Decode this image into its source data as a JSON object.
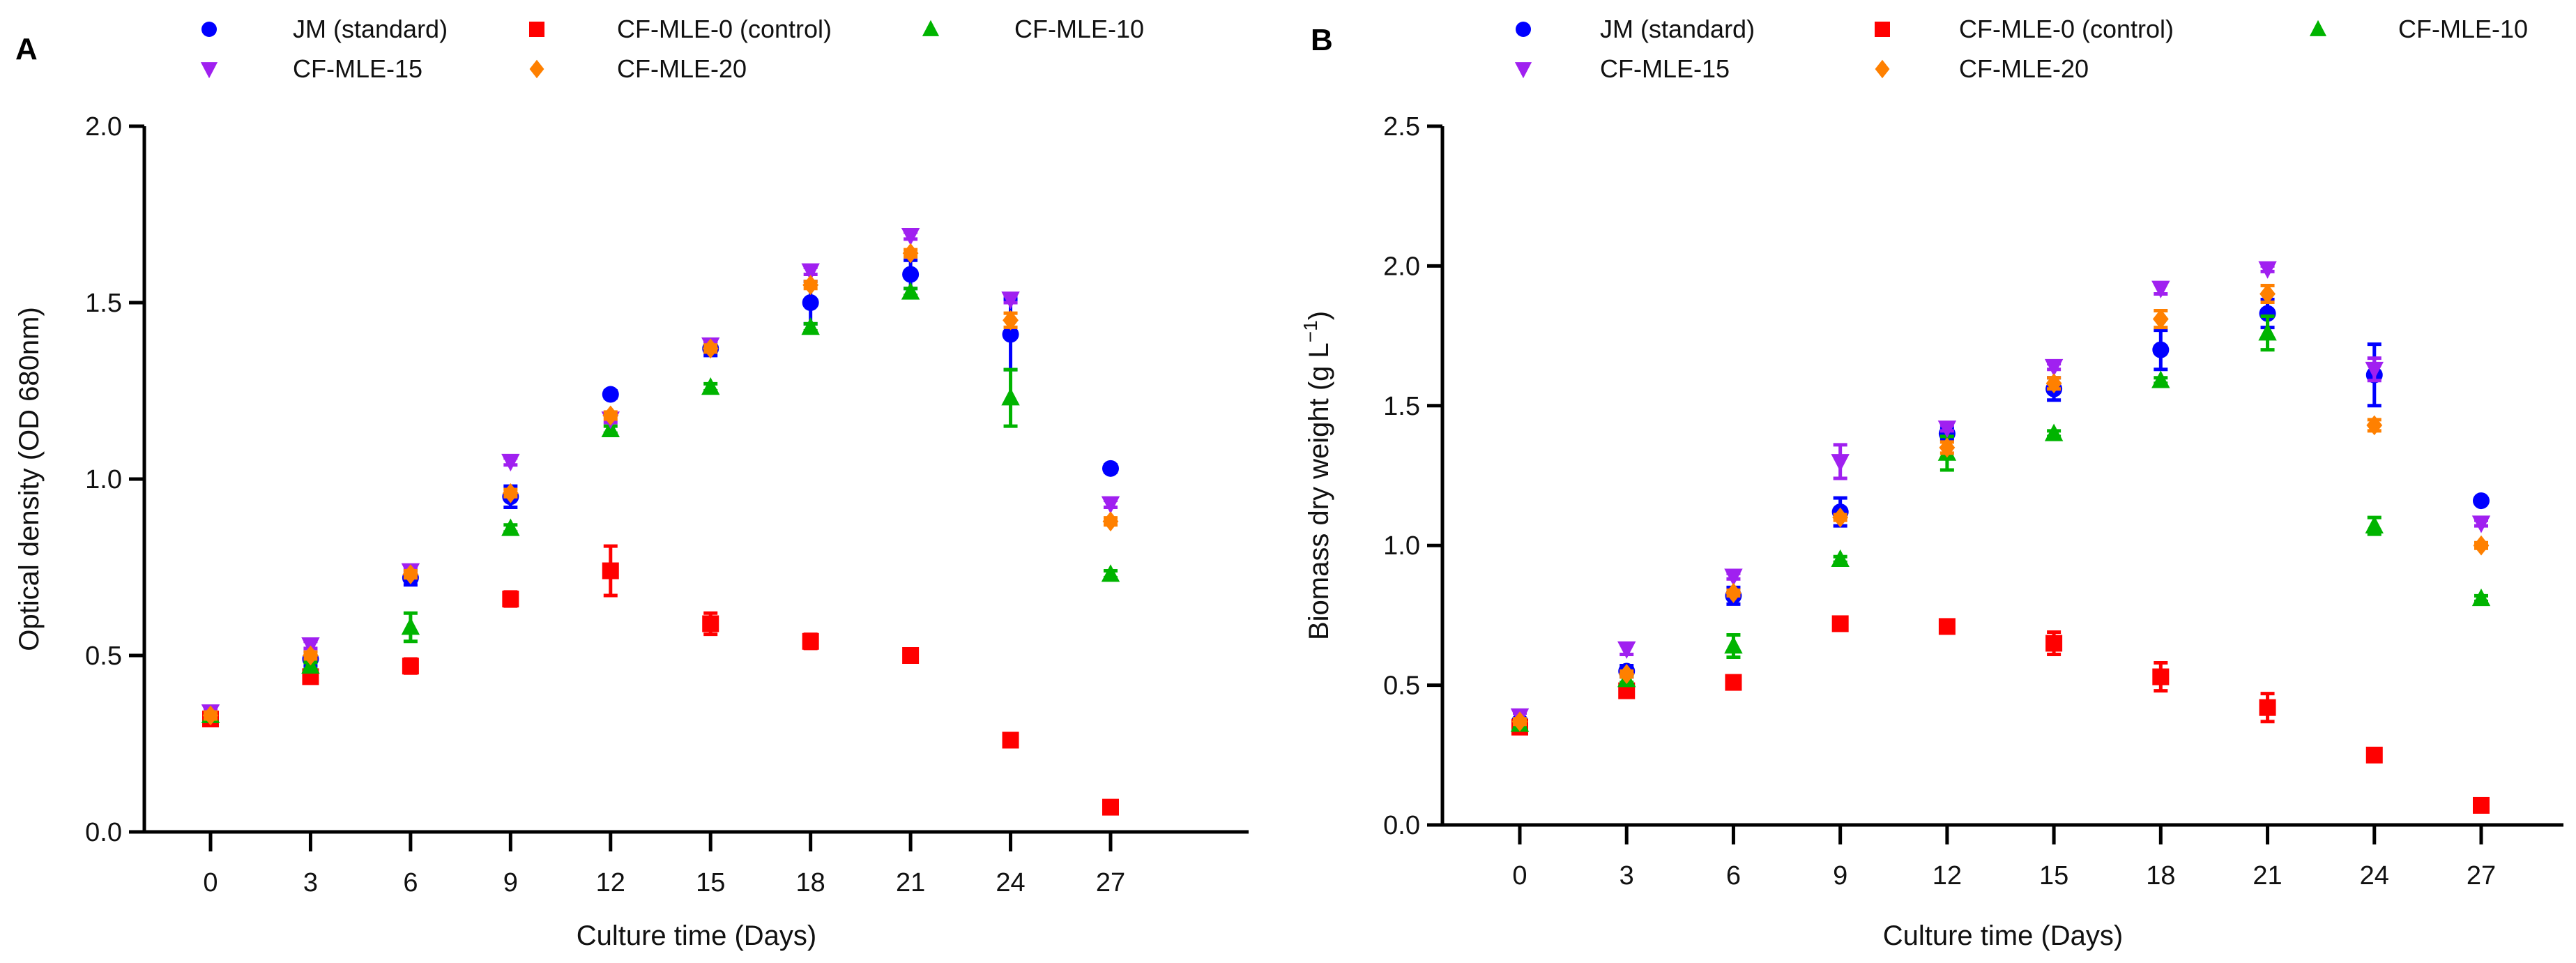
{
  "chart_data": [
    {
      "panel_label": "A",
      "type": "scatter",
      "xlabel": "Culture time (Days)",
      "ylabel": "Optical density (OD 680nm)",
      "x": [
        0,
        3,
        6,
        9,
        12,
        15,
        18,
        21,
        24,
        27
      ],
      "x_ticks": [
        "0",
        "3",
        "6",
        "9",
        "12",
        "15",
        "18",
        "21",
        "24",
        "27"
      ],
      "y_ticks": [
        "0.0",
        "0.5",
        "1.0",
        "1.5",
        "2.0"
      ],
      "ylim": [
        0,
        2.0
      ],
      "grid": false,
      "legend_position": "top",
      "series": [
        {
          "name": "JM (standard)",
          "marker": "circle",
          "color": "#0000ff",
          "values": [
            0.33,
            0.49,
            0.72,
            0.95,
            1.24,
            1.37,
            1.5,
            1.58,
            1.41,
            1.03
          ],
          "errors": [
            0.01,
            0.02,
            0.02,
            0.03,
            0.01,
            0.02,
            0.06,
            0.04,
            0.1,
            0.01
          ]
        },
        {
          "name": "CF-MLE-0 (control)",
          "marker": "square",
          "color": "#ff0000",
          "values": [
            0.32,
            0.44,
            0.47,
            0.66,
            0.74,
            0.59,
            0.54,
            0.5,
            0.26,
            0.07
          ],
          "errors": [
            0.01,
            0.01,
            0.02,
            0.02,
            0.07,
            0.03,
            0.02,
            0.01,
            0.01,
            0.01
          ]
        },
        {
          "name": "CF-MLE-10",
          "marker": "triangle-up",
          "color": "#00b400",
          "values": [
            0.33,
            0.47,
            0.58,
            0.86,
            1.14,
            1.26,
            1.43,
            1.53,
            1.23,
            0.73
          ],
          "errors": [
            0.01,
            0.01,
            0.04,
            0.01,
            0.01,
            0.01,
            0.01,
            0.01,
            0.08,
            0.01
          ]
        },
        {
          "name": "CF-MLE-15",
          "marker": "triangle-down",
          "color": "#a020f0",
          "values": [
            0.34,
            0.53,
            0.74,
            1.05,
            1.17,
            1.38,
            1.59,
            1.69,
            1.51,
            0.93
          ],
          "errors": [
            0.01,
            0.01,
            0.01,
            0.01,
            0.01,
            0.01,
            0.01,
            0.01,
            0.01,
            0.01
          ]
        },
        {
          "name": "CF-MLE-20",
          "marker": "diamond",
          "color": "#ff8000",
          "values": [
            0.33,
            0.5,
            0.73,
            0.96,
            1.18,
            1.37,
            1.55,
            1.64,
            1.45,
            0.88
          ],
          "errors": [
            0.01,
            0.01,
            0.01,
            0.01,
            0.01,
            0.01,
            0.01,
            0.01,
            0.02,
            0.01
          ]
        }
      ]
    },
    {
      "panel_label": "B",
      "type": "scatter",
      "xlabel": "Culture time (Days)",
      "ylabel": "Biomass dry weight (g L",
      "ylabel_sup": "−1",
      "ylabel_end": ")",
      "x": [
        0,
        3,
        6,
        9,
        12,
        15,
        18,
        21,
        24,
        27
      ],
      "x_ticks": [
        "0",
        "3",
        "6",
        "9",
        "12",
        "15",
        "18",
        "21",
        "24",
        "27"
      ],
      "y_ticks": [
        "0.0",
        "0.5",
        "1.0",
        "1.5",
        "2.0",
        "2.5"
      ],
      "ylim": [
        0,
        2.5
      ],
      "grid": false,
      "legend_position": "top",
      "series": [
        {
          "name": "JM (standard)",
          "marker": "circle",
          "color": "#0000ff",
          "values": [
            0.37,
            0.55,
            0.82,
            1.12,
            1.4,
            1.56,
            1.7,
            1.83,
            1.61,
            1.16
          ],
          "errors": [
            0.01,
            0.02,
            0.03,
            0.05,
            0.02,
            0.04,
            0.07,
            0.05,
            0.11,
            0.01
          ]
        },
        {
          "name": "CF-MLE-0 (control)",
          "marker": "square",
          "color": "#ff0000",
          "values": [
            0.35,
            0.48,
            0.51,
            0.72,
            0.71,
            0.65,
            0.53,
            0.42,
            0.25,
            0.07
          ],
          "errors": [
            0.01,
            0.01,
            0.02,
            0.02,
            0.02,
            0.04,
            0.05,
            0.05,
            0.02,
            0.01
          ]
        },
        {
          "name": "CF-MLE-10",
          "marker": "triangle-up",
          "color": "#00b400",
          "values": [
            0.36,
            0.52,
            0.64,
            0.95,
            1.33,
            1.4,
            1.59,
            1.76,
            1.07,
            0.81
          ],
          "errors": [
            0.01,
            0.01,
            0.04,
            0.01,
            0.06,
            0.01,
            0.01,
            0.06,
            0.03,
            0.01
          ]
        },
        {
          "name": "CF-MLE-15",
          "marker": "triangle-down",
          "color": "#a020f0",
          "values": [
            0.39,
            0.63,
            0.89,
            1.3,
            1.42,
            1.64,
            1.92,
            1.99,
            1.63,
            1.08
          ],
          "errors": [
            0.01,
            0.02,
            0.01,
            0.06,
            0.01,
            0.01,
            0.02,
            0.01,
            0.04,
            0.01
          ]
        },
        {
          "name": "CF-MLE-20",
          "marker": "diamond",
          "color": "#ff8000",
          "values": [
            0.37,
            0.54,
            0.83,
            1.1,
            1.35,
            1.58,
            1.81,
            1.9,
            1.43,
            1.0
          ],
          "errors": [
            0.01,
            0.01,
            0.01,
            0.01,
            0.02,
            0.02,
            0.03,
            0.03,
            0.02,
            0.01
          ]
        }
      ]
    }
  ]
}
